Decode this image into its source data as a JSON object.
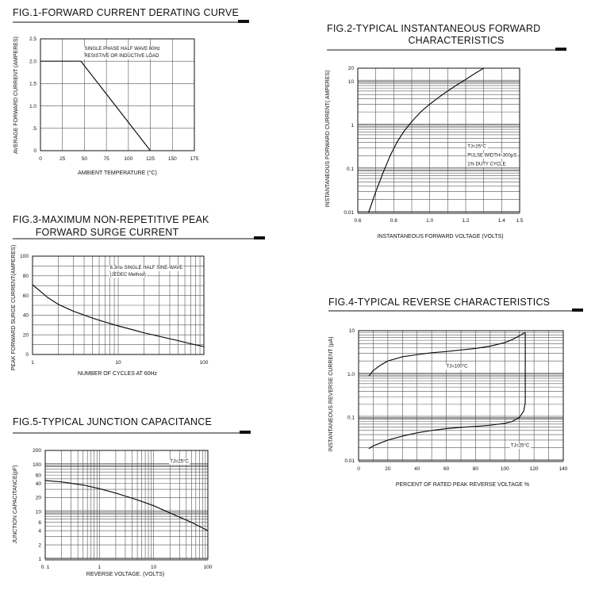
{
  "colors": {
    "ink": "#111111",
    "grid": "#555555",
    "background": "#ffffff"
  },
  "chart_data": [
    {
      "id": "fig1",
      "type": "line",
      "title": "FIG.1-FORWARD CURRENT DERATING CURVE",
      "subtitle": "",
      "xlabel": "AMBIENT TEMPERATURE (°C)",
      "ylabel": "AVERAGE FORWARD CURRENT (AMPERES)",
      "x_scale": "linear",
      "y_scale": "linear",
      "xlim": [
        0,
        175
      ],
      "ylim": [
        0,
        2.5
      ],
      "xticks": [
        0,
        25,
        50,
        75,
        100,
        125,
        150,
        175
      ],
      "xtick_labels": [
        "0",
        "25",
        "50",
        "75",
        "100",
        "125",
        "150",
        "175"
      ],
      "yticks": [
        0,
        0.5,
        1.0,
        1.5,
        2.0,
        2.5
      ],
      "ytick_labels": [
        "0",
        ".5",
        "1.0",
        "1.5",
        "2.0",
        "2.5"
      ],
      "grid": "major",
      "annotations": [
        {
          "text": "SINGLE PHASE HALF WAVE 60Hz",
          "x": 50,
          "y": 2.25
        },
        {
          "text": "RESISTIVE OR INDUCTIVE LOAD",
          "x": 50,
          "y": 2.09
        }
      ],
      "series": [
        {
          "x": [
            0,
            46,
            125
          ],
          "y": [
            2.0,
            2.0,
            0
          ]
        }
      ]
    },
    {
      "id": "fig2",
      "type": "line",
      "title": "FIG.2-TYPICAL INSTANTANEOUS FORWARD",
      "subtitle": "CHARACTERISTICS",
      "xlabel": "INSTANTANEOUS FORWARD VOLTAGE (VOLTS)",
      "ylabel": "INSTANTANEOUS FORWARD CURRENT( AMPERES)",
      "x_scale": "linear",
      "y_scale": "log",
      "xlim": [
        0.6,
        1.5
      ],
      "ylim": [
        0.01,
        20
      ],
      "xticks": [
        0.6,
        0.8,
        1.0,
        1.2,
        1.4,
        1.5
      ],
      "xtick_labels": [
        "0.6",
        "0.8",
        "1.0",
        "1.2",
        "1.4",
        "1.5"
      ],
      "yticks": [
        0.01,
        0.1,
        1,
        10,
        20
      ],
      "ytick_labels": [
        "0.01",
        "0.1",
        "1",
        "10",
        "20"
      ],
      "grid": "major+minor",
      "annotations": [
        {
          "text": "TJ=25°C",
          "x": 1.21,
          "y": 0.3
        },
        {
          "text": "PULSE WIDTH=300μS",
          "x": 1.21,
          "y": 0.19
        },
        {
          "text": "1% DUTY CYCLE",
          "x": 1.21,
          "y": 0.12
        }
      ],
      "series": [
        {
          "x": [
            0.66,
            0.7,
            0.74,
            0.78,
            0.82,
            0.86,
            0.9,
            0.95,
            1.0,
            1.05,
            1.1,
            1.15,
            1.2,
            1.25,
            1.3
          ],
          "y": [
            0.01,
            0.03,
            0.08,
            0.2,
            0.42,
            0.75,
            1.2,
            2.0,
            3.0,
            4.3,
            6.0,
            8.2,
            11,
            15,
            20
          ]
        }
      ]
    },
    {
      "id": "fig3",
      "type": "line",
      "title": "FIG.3-MAXIMUM NON-REPETITIVE PEAK",
      "subtitle": "FORWARD SURGE CURRENT",
      "xlabel": "NUMBER OF CYCLES AT 60Hz",
      "ylabel": "PEAK FORWARD SURGE CURRENT(AMPERES)",
      "x_scale": "log",
      "y_scale": "linear",
      "xlim": [
        1,
        100
      ],
      "ylim": [
        0,
        100
      ],
      "xticks": [
        1,
        10,
        100
      ],
      "xtick_labels": [
        "1",
        "10",
        "100"
      ],
      "yticks": [
        0,
        20,
        40,
        60,
        80,
        100
      ],
      "ytick_labels": [
        "0",
        "20",
        "40",
        "60",
        "80",
        "100"
      ],
      "grid": "major+minor",
      "annotations": [
        {
          "text": "8.3ms SINGLE HALF SINE-WAVE",
          "x": 8,
          "y": 87
        },
        {
          "text": "(JEDEC Method)",
          "x": 8,
          "y": 80
        }
      ],
      "series": [
        {
          "x": [
            1,
            1.5,
            2,
            3,
            5,
            7,
            10,
            15,
            20,
            30,
            50,
            70,
            100
          ],
          "y": [
            71,
            58,
            51,
            44,
            37,
            33,
            29,
            25,
            22,
            18.5,
            14,
            11,
            8
          ]
        }
      ]
    },
    {
      "id": "fig4",
      "type": "line",
      "title": "FIG.4-TYPICAL REVERSE CHARACTERISTICS",
      "subtitle": "",
      "xlabel": "PERCENT OF RATED PEAK REVERSE VOLTAGE %",
      "ylabel": "INSTANTANEOUS REVERSE CURRENT (μA)",
      "x_scale": "linear",
      "y_scale": "log",
      "xlim": [
        0,
        140
      ],
      "ylim": [
        0.01,
        10
      ],
      "xticks": [
        0,
        20,
        40,
        60,
        80,
        100,
        120,
        140
      ],
      "xtick_labels": [
        "0",
        "20",
        "40",
        "60",
        "80",
        "100",
        "120",
        "140"
      ],
      "yticks": [
        0.01,
        0.1,
        1.0,
        10
      ],
      "ytick_labels": [
        "0.01",
        "0.1",
        "1.0",
        "10"
      ],
      "grid": "major+minor",
      "annotations": [
        {
          "text": "TJ=100°C",
          "x": 60,
          "y": 1.4
        },
        {
          "text": "TJ=25°C",
          "x": 104,
          "y": 0.021
        }
      ],
      "series": [
        {
          "x": [
            7,
            10,
            15,
            20,
            30,
            40,
            50,
            60,
            70,
            80,
            90,
            100,
            105,
            110,
            114
          ],
          "y": [
            0.9,
            1.2,
            1.6,
            2.0,
            2.5,
            2.8,
            3.1,
            3.3,
            3.6,
            3.9,
            4.4,
            5.3,
            6.2,
            7.6,
            9.2
          ]
        },
        {
          "x": [
            7,
            10,
            20,
            30,
            40,
            50,
            60,
            70,
            80,
            90,
            100,
            105,
            110,
            113,
            114,
            114,
            114
          ],
          "y": [
            0.019,
            0.022,
            0.03,
            0.037,
            0.044,
            0.05,
            0.055,
            0.059,
            0.062,
            0.066,
            0.073,
            0.08,
            0.1,
            0.14,
            0.22,
            2.0,
            9.2
          ]
        }
      ]
    },
    {
      "id": "fig5",
      "type": "line",
      "title": "FIG.5-TYPICAL JUNCTION CAPACITANCE",
      "subtitle": "",
      "xlabel": "REVERSE VOLTAGE. (VOLTS)",
      "ylabel": "JUNCTION CAPACITANCE(pF)",
      "x_scale": "log",
      "y_scale": "log",
      "xlim": [
        0.1,
        100
      ],
      "ylim": [
        1,
        200
      ],
      "xticks": [
        0.1,
        1,
        10,
        100
      ],
      "xtick_labels": [
        "0. 1",
        "1",
        "10",
        "100"
      ],
      "yticks": [
        1,
        2,
        4,
        6,
        10,
        20,
        40,
        60,
        100,
        200
      ],
      "ytick_labels": [
        "1",
        "2",
        "4",
        "6",
        "10",
        "20",
        "40",
        "60",
        "100",
        "200"
      ],
      "grid": "major+minor",
      "annotations": [
        {
          "text": "TJ=25°C",
          "x": 20,
          "y": 110
        }
      ],
      "series": [
        {
          "x": [
            0.1,
            0.2,
            0.5,
            1,
            2,
            5,
            10,
            20,
            50,
            100
          ],
          "y": [
            46,
            43,
            37,
            31,
            25,
            18,
            13.5,
            9.5,
            6,
            4
          ]
        }
      ]
    }
  ]
}
